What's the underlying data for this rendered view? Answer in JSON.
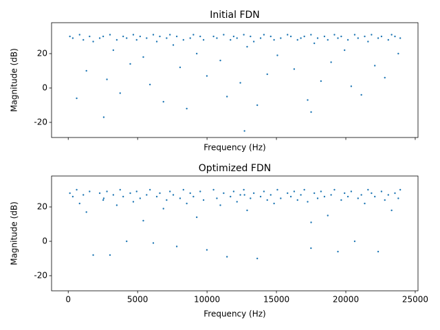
{
  "chart_data": [
    {
      "type": "scatter",
      "title": "Initial FDN",
      "x_label": "Frequency (Hz)",
      "y_label": "Magnitude (dB)",
      "color": "#1f77b4",
      "xlim": [
        -1200,
        25200
      ],
      "ylim": [
        -28.8,
        38
      ],
      "xticks": [
        0,
        5000,
        10000,
        15000,
        20000,
        25000
      ],
      "xticklabels": false,
      "yticks": [
        -20,
        0,
        20
      ],
      "x": [
        120,
        330,
        610,
        820,
        1090,
        1310,
        1540,
        1800,
        2560,
        2270,
        2520,
        2790,
        3010,
        3250,
        3500,
        3740,
        3960,
        4210,
        4470,
        4690,
        4930,
        5180,
        5410,
        5650,
        5890,
        6130,
        6380,
        6600,
        6860,
        7090,
        7330,
        7570,
        7820,
        8060,
        8300,
        8540,
        8790,
        9020,
        9260,
        9510,
        9750,
        9990,
        12700,
        10470,
        10710,
        10960,
        11200,
        11440,
        11690,
        11920,
        12160,
        12400,
        12650,
        12890,
        13130,
        13370,
        13620,
        13860,
        14100,
        14340,
        14590,
        14830,
        15070,
        15310,
        17500,
        15800,
        16040,
        16280,
        16520,
        16760,
        17010,
        17250,
        17490,
        17730,
        17970,
        18210,
        18460,
        18700,
        18940,
        19180,
        19430,
        19670,
        19910,
        20150,
        20390,
        20640,
        20880,
        21120,
        21360,
        21600,
        21850,
        22090,
        22330,
        22570,
        22810,
        23060,
        23300,
        23540,
        23780,
        23920
      ],
      "values": [
        30,
        29,
        -6,
        31,
        28,
        10,
        30,
        27,
        -17,
        29,
        30,
        5,
        31,
        22,
        28,
        -3,
        30,
        29,
        14,
        31,
        28,
        30,
        18,
        29,
        2,
        31,
        27,
        30,
        -8,
        29,
        31,
        25,
        30,
        12,
        28,
        -12,
        29,
        31,
        20,
        30,
        28,
        7,
        -25,
        30,
        29,
        16,
        31,
        -5,
        28,
        30,
        29,
        3,
        31,
        24,
        30,
        27,
        -10,
        29,
        31,
        8,
        30,
        28,
        19,
        29,
        -14,
        31,
        30,
        11,
        28,
        29,
        30,
        -7,
        31,
        26,
        29,
        4,
        30,
        28,
        15,
        31,
        29,
        30,
        22,
        28,
        1,
        31,
        29,
        -4,
        30,
        27,
        31,
        13,
        29,
        30,
        6,
        28,
        31,
        30,
        20,
        29
      ]
    },
    {
      "type": "scatter",
      "title": "Optimized FDN",
      "x_label": "Frequency (Hz)",
      "y_label": "Magnitude (dB)",
      "color": "#1f77b4",
      "xlim": [
        -1200,
        25200
      ],
      "ylim": [
        -28.8,
        38
      ],
      "xticks": [
        0,
        5000,
        10000,
        15000,
        20000,
        25000
      ],
      "xticklabels": true,
      "yticks": [
        -20,
        0,
        20
      ],
      "x": [
        120,
        330,
        610,
        820,
        1090,
        1310,
        1540,
        1800,
        2560,
        2270,
        2520,
        2790,
        3010,
        3250,
        3500,
        3740,
        3960,
        4210,
        4470,
        4690,
        4930,
        5180,
        5410,
        5650,
        5890,
        6130,
        6380,
        6600,
        6860,
        7090,
        7330,
        7570,
        7820,
        8060,
        8300,
        8540,
        8790,
        9020,
        9260,
        9510,
        9750,
        9990,
        12700,
        10470,
        10710,
        10960,
        11200,
        11440,
        11690,
        11920,
        12160,
        12400,
        12650,
        12890,
        13130,
        13370,
        13620,
        13860,
        14100,
        14340,
        14590,
        14830,
        15070,
        15310,
        17500,
        15800,
        16040,
        16280,
        16520,
        16760,
        17010,
        17250,
        17490,
        17730,
        17970,
        18210,
        18460,
        18700,
        18940,
        19180,
        19430,
        19670,
        19910,
        20150,
        20390,
        20640,
        20880,
        21120,
        21360,
        21600,
        21850,
        22090,
        22330,
        22570,
        22810,
        23060,
        23300,
        23540,
        23780,
        23920
      ],
      "values": [
        28,
        26,
        30,
        22,
        27,
        17,
        29,
        -8,
        25,
        28,
        24,
        29,
        -8,
        27,
        21,
        30,
        26,
        0,
        28,
        23,
        29,
        25,
        12,
        27,
        30,
        -1,
        26,
        28,
        19,
        24,
        29,
        27,
        -3,
        25,
        30,
        22,
        28,
        26,
        14,
        29,
        24,
        -5,
        27,
        30,
        25,
        21,
        28,
        -9,
        26,
        29,
        23,
        27,
        30,
        18,
        25,
        28,
        -10,
        26,
        29,
        24,
        27,
        22,
        30,
        25,
        11,
        28,
        26,
        29,
        24,
        27,
        30,
        23,
        -4,
        28,
        25,
        29,
        26,
        15,
        27,
        30,
        -6,
        24,
        28,
        26,
        29,
        0,
        25,
        27,
        22,
        30,
        28,
        26,
        -6,
        29,
        24,
        27,
        18,
        28,
        25,
        30
      ]
    }
  ]
}
